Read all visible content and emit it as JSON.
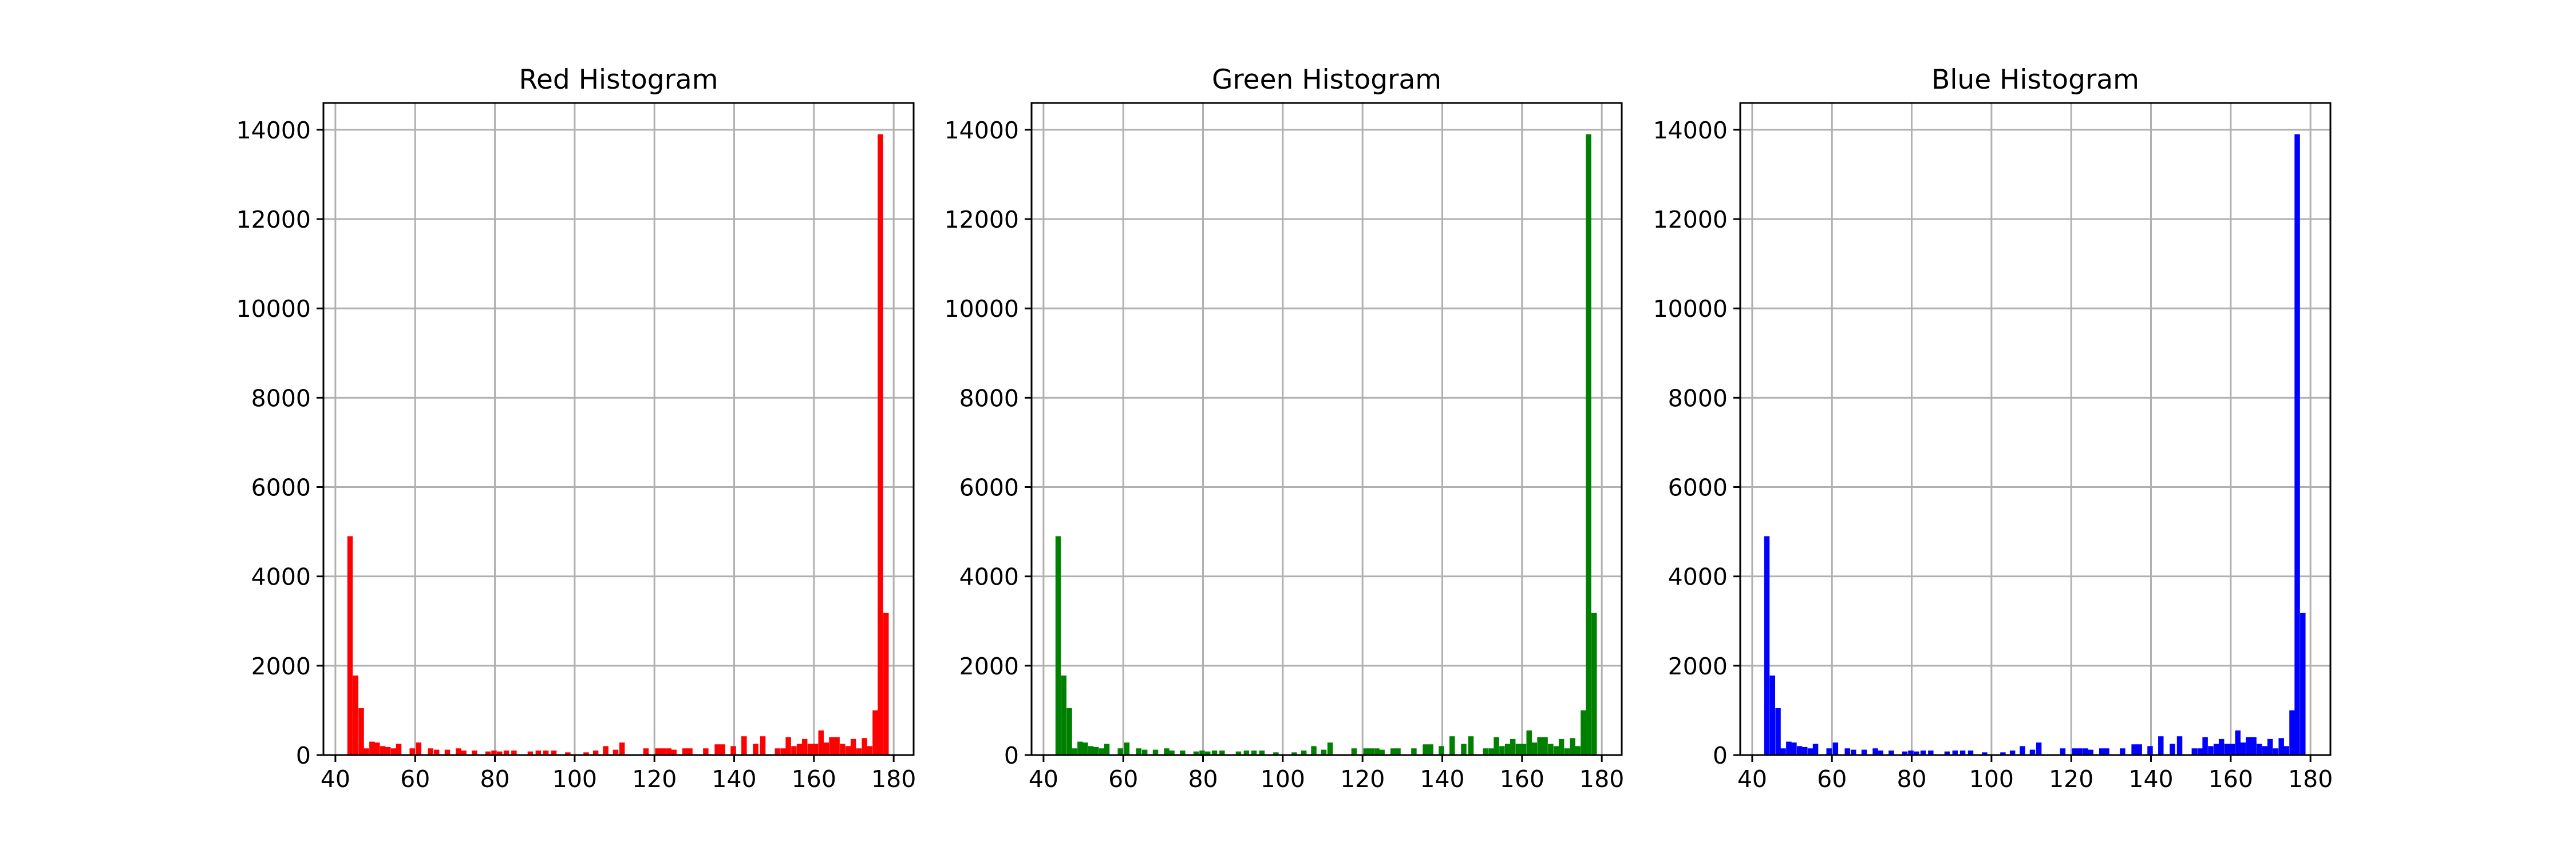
{
  "figure": {
    "background": "#ffffff"
  },
  "chart_data": [
    {
      "type": "bar",
      "title": "Red Histogram",
      "color": "#ff0000",
      "grid": true,
      "xlabel": "",
      "ylabel": "",
      "xlim": [
        37,
        185
      ],
      "ylim": [
        0,
        14600
      ],
      "xticks": [
        40,
        60,
        80,
        100,
        120,
        140,
        160,
        180
      ],
      "yticks": [
        0,
        2000,
        4000,
        6000,
        8000,
        10000,
        12000,
        14000
      ],
      "bin_width": 1.36,
      "x": [
        43,
        44.4,
        45.8,
        47.1,
        48.5,
        49.8,
        51.2,
        52.5,
        53.9,
        55.2,
        58.6,
        60.2,
        63.2,
        64.7,
        67.4,
        70.2,
        71.5,
        74.2,
        77.6,
        79.1,
        80.5,
        82.2,
        84.1,
        88.2,
        90.2,
        92.1,
        94.1,
        97.6,
        102.2,
        104.6,
        107.1,
        109.6,
        111.2,
        117.2,
        120.2,
        121.5,
        122.9,
        124.2,
        127.0,
        128.2,
        132.2,
        135.1,
        136.4,
        139.1,
        141.8,
        144.7,
        146.5,
        150.2,
        151.6,
        152.9,
        154.3,
        155.7,
        157.0,
        158.4,
        159.7,
        161.1,
        162.4,
        163.8,
        165.1,
        166.5,
        167.9,
        169.2,
        170.6,
        172.0,
        173.3,
        174.7,
        176.0,
        177.4,
        178.7
      ],
      "values": [
        4900,
        1780,
        1050,
        150,
        300,
        280,
        200,
        180,
        150,
        250,
        150,
        280,
        150,
        120,
        120,
        150,
        100,
        100,
        80,
        100,
        80,
        100,
        100,
        80,
        100,
        100,
        100,
        60,
        60,
        100,
        200,
        120,
        280,
        150,
        150,
        150,
        150,
        120,
        150,
        150,
        150,
        240,
        240,
        200,
        420,
        250,
        420,
        150,
        150,
        400,
        200,
        250,
        360,
        250,
        250,
        550,
        280,
        400,
        400,
        250,
        200,
        360,
        150,
        380,
        200,
        1000,
        13900,
        3180,
        0
      ]
    },
    {
      "type": "bar",
      "title": "Green Histogram",
      "color": "#008000",
      "grid": true,
      "xlabel": "",
      "ylabel": "",
      "xlim": [
        37,
        185
      ],
      "ylim": [
        0,
        14600
      ],
      "xticks": [
        40,
        60,
        80,
        100,
        120,
        140,
        160,
        180
      ],
      "yticks": [
        0,
        2000,
        4000,
        6000,
        8000,
        10000,
        12000,
        14000
      ],
      "bin_width": 1.36,
      "x": [
        43,
        44.4,
        45.8,
        47.1,
        48.5,
        49.8,
        51.2,
        52.5,
        53.9,
        55.2,
        58.6,
        60.2,
        63.2,
        64.7,
        67.4,
        70.2,
        71.5,
        74.2,
        77.6,
        79.1,
        80.5,
        82.2,
        84.1,
        88.2,
        90.2,
        92.1,
        94.1,
        97.6,
        102.2,
        104.6,
        107.1,
        109.6,
        111.2,
        117.2,
        120.2,
        121.5,
        122.9,
        124.2,
        127.0,
        128.2,
        132.2,
        135.1,
        136.4,
        139.1,
        141.8,
        144.7,
        146.5,
        150.2,
        151.6,
        152.9,
        154.3,
        155.7,
        157.0,
        158.4,
        159.7,
        161.1,
        162.4,
        163.8,
        165.1,
        166.5,
        167.9,
        169.2,
        170.6,
        172.0,
        173.3,
        174.7,
        176.0,
        177.4,
        178.7
      ],
      "values": [
        4900,
        1780,
        1050,
        150,
        300,
        280,
        200,
        180,
        150,
        250,
        150,
        280,
        150,
        120,
        120,
        150,
        100,
        100,
        80,
        100,
        80,
        100,
        100,
        80,
        100,
        100,
        100,
        60,
        60,
        100,
        200,
        120,
        280,
        150,
        150,
        150,
        150,
        120,
        150,
        150,
        150,
        240,
        240,
        200,
        420,
        250,
        420,
        150,
        150,
        400,
        200,
        250,
        360,
        250,
        250,
        550,
        280,
        400,
        400,
        250,
        200,
        360,
        150,
        380,
        200,
        1000,
        13900,
        3180,
        0
      ]
    },
    {
      "type": "bar",
      "title": "Blue Histogram",
      "color": "#0000ff",
      "grid": true,
      "xlabel": "",
      "ylabel": "",
      "xlim": [
        37,
        185
      ],
      "ylim": [
        0,
        14600
      ],
      "xticks": [
        40,
        60,
        80,
        100,
        120,
        140,
        160,
        180
      ],
      "yticks": [
        0,
        2000,
        4000,
        6000,
        8000,
        10000,
        12000,
        14000
      ],
      "bin_width": 1.36,
      "x": [
        43,
        44.4,
        45.8,
        47.1,
        48.5,
        49.8,
        51.2,
        52.5,
        53.9,
        55.2,
        58.6,
        60.2,
        63.2,
        64.7,
        67.4,
        70.2,
        71.5,
        74.2,
        77.6,
        79.1,
        80.5,
        82.2,
        84.1,
        88.2,
        90.2,
        92.1,
        94.1,
        97.6,
        102.2,
        104.6,
        107.1,
        109.6,
        111.2,
        117.2,
        120.2,
        121.5,
        122.9,
        124.2,
        127.0,
        128.2,
        132.2,
        135.1,
        136.4,
        139.1,
        141.8,
        144.7,
        146.5,
        150.2,
        151.6,
        152.9,
        154.3,
        155.7,
        157.0,
        158.4,
        159.7,
        161.1,
        162.4,
        163.8,
        165.1,
        166.5,
        167.9,
        169.2,
        170.6,
        172.0,
        173.3,
        174.7,
        176.0,
        177.4,
        178.7
      ],
      "values": [
        4900,
        1780,
        1050,
        150,
        300,
        280,
        200,
        180,
        150,
        250,
        150,
        280,
        150,
        120,
        120,
        150,
        100,
        100,
        80,
        100,
        80,
        100,
        100,
        80,
        100,
        100,
        100,
        60,
        60,
        100,
        200,
        120,
        280,
        150,
        150,
        150,
        150,
        120,
        150,
        150,
        150,
        240,
        240,
        200,
        420,
        250,
        420,
        150,
        150,
        400,
        200,
        250,
        360,
        250,
        250,
        550,
        280,
        400,
        400,
        250,
        200,
        360,
        150,
        380,
        200,
        1000,
        13900,
        3180,
        0
      ]
    }
  ]
}
